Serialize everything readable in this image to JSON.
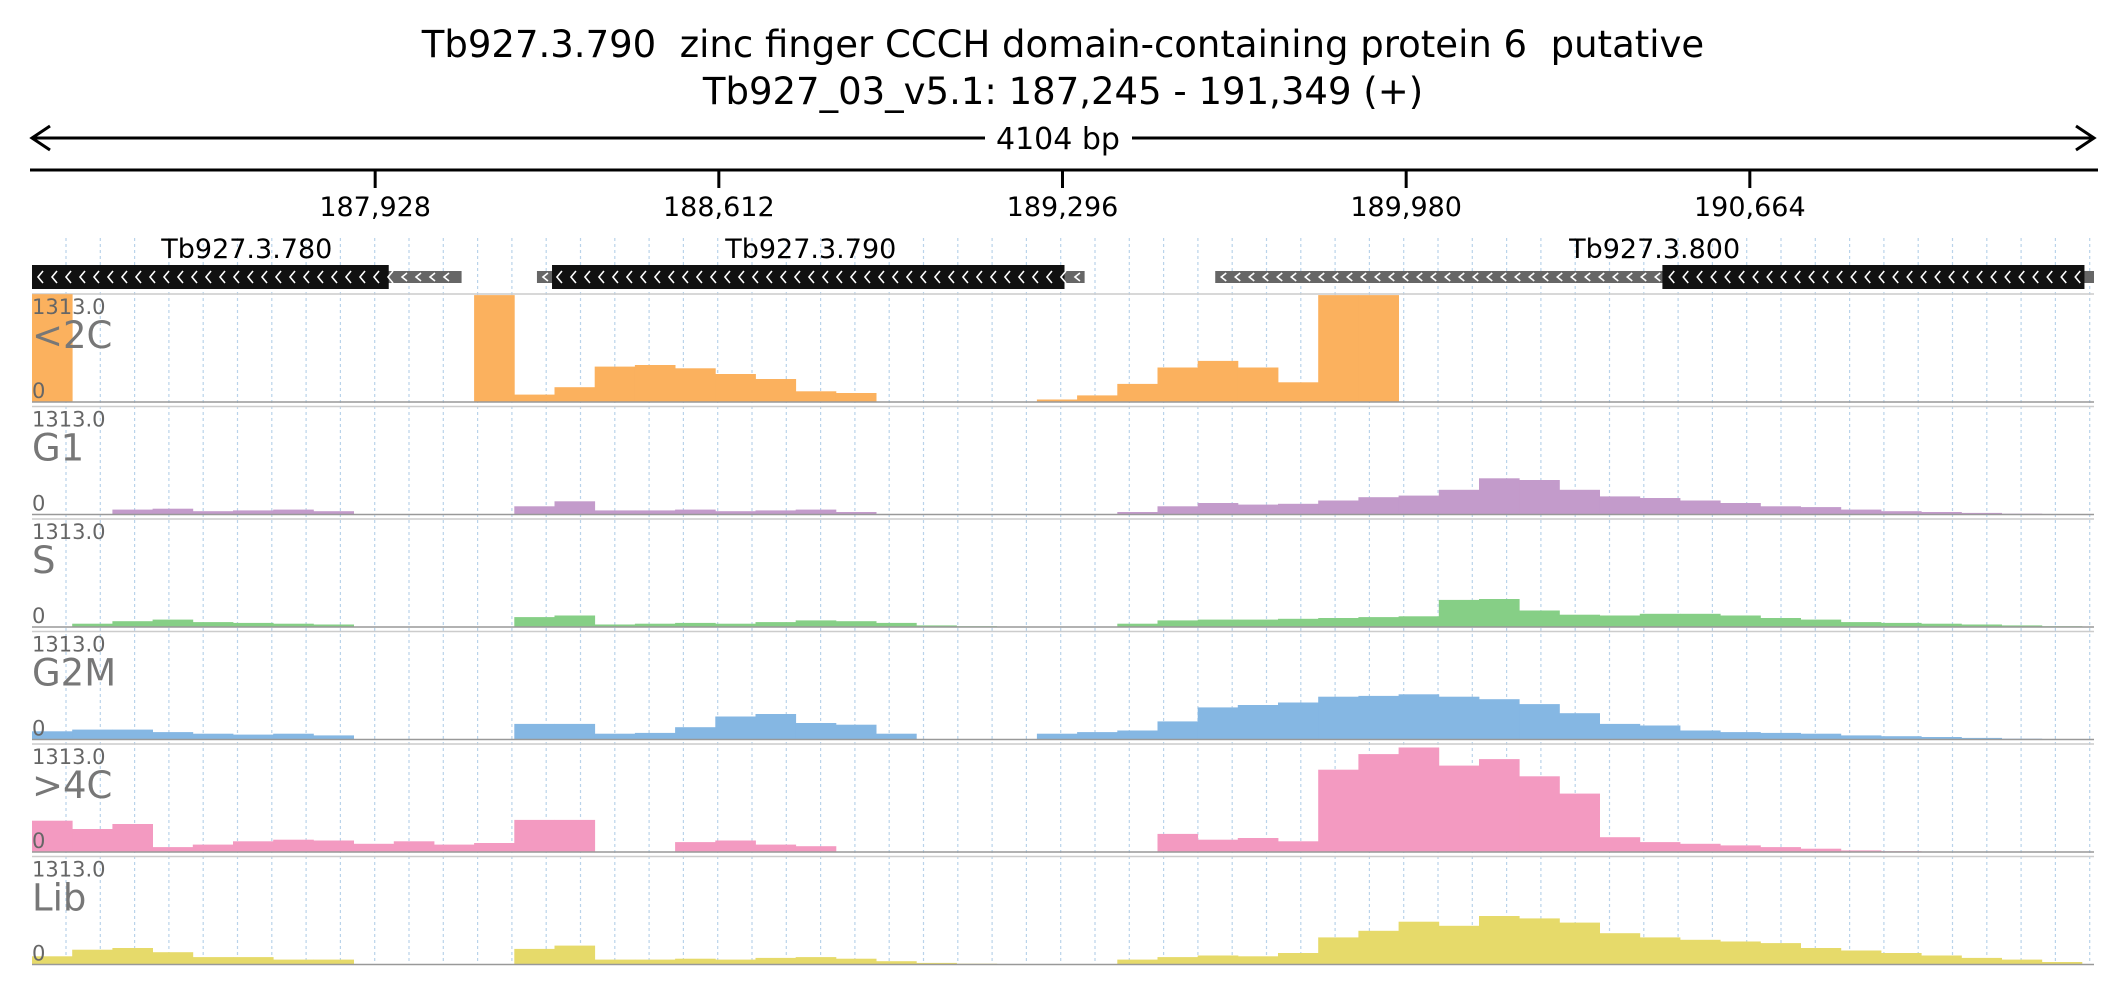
{
  "header": {
    "title": "Tb927.3.790  zinc finger CCCH domain-containing protein 6  putative",
    "location": "Tb927_03_v5.1: 187,245 - 191,349 (+)",
    "span_label": "4104 bp"
  },
  "chart_data": {
    "type": "area",
    "region": {
      "chrom": "Tb927_03_v5.1",
      "start": 187245,
      "end": 191349,
      "strand": "+"
    },
    "ruler_ticks": [
      {
        "pos": 187928,
        "label": "187,928"
      },
      {
        "pos": 188612,
        "label": "188,612"
      },
      {
        "pos": 189296,
        "label": "189,296"
      },
      {
        "pos": 189980,
        "label": "189,980"
      },
      {
        "pos": 190664,
        "label": "190,664"
      }
    ],
    "genes": [
      {
        "name": "Tb927.3.780",
        "strand": "-",
        "transcript": [
          187245,
          188100
        ],
        "cds": [
          187245,
          187955
        ]
      },
      {
        "name": "Tb927.3.790",
        "strand": "-",
        "transcript": [
          188250,
          189340
        ],
        "cds": [
          188280,
          189300
        ]
      },
      {
        "name": "Tb927.3.800",
        "strand": "-",
        "transcript": [
          189600,
          191349
        ],
        "cds": [
          190490,
          191330
        ]
      }
    ],
    "track_max_label": "1313.0",
    "track_min_label": "0",
    "ylim": [
      0,
      1313
    ],
    "bin_starts": [
      187245,
      187325,
      187405,
      187485,
      187565,
      187645,
      187725,
      187805,
      187885,
      187965,
      188045,
      188125,
      188205,
      188285,
      188365,
      188445,
      188525,
      188605,
      188685,
      188765,
      188845,
      188925,
      189005,
      189085,
      189165,
      189245,
      189325,
      189405,
      189485,
      189565,
      189645,
      189725,
      189805,
      189885,
      189965,
      190045,
      190125,
      190205,
      190285,
      190365,
      190445,
      190525,
      190605,
      190685,
      190765,
      190845,
      190925,
      191005,
      191085,
      191165,
      191245
    ],
    "bin_size": 80,
    "series": [
      {
        "name": "<2C",
        "color": "#fbb15e",
        "values": [
          1310,
          0,
          0,
          0,
          0,
          0,
          0,
          0,
          0,
          0,
          0,
          1300,
          90,
          180,
          430,
          450,
          410,
          340,
          280,
          130,
          110,
          0,
          0,
          0,
          0,
          30,
          80,
          220,
          420,
          500,
          420,
          240,
          1300,
          1300,
          0,
          0,
          0,
          0,
          0,
          0,
          0,
          0,
          0,
          0,
          0,
          0,
          0,
          0,
          0,
          0,
          0
        ]
      },
      {
        "name": "G1",
        "color": "#c39bcb",
        "values": [
          0,
          0,
          60,
          70,
          40,
          50,
          60,
          40,
          0,
          0,
          0,
          0,
          100,
          160,
          50,
          50,
          60,
          40,
          50,
          60,
          30,
          0,
          0,
          0,
          0,
          0,
          0,
          30,
          100,
          140,
          120,
          130,
          170,
          210,
          230,
          300,
          440,
          420,
          300,
          220,
          200,
          170,
          140,
          100,
          90,
          60,
          40,
          30,
          20,
          10,
          0
        ]
      },
      {
        "name": "S",
        "color": "#86cf86",
        "values": [
          0,
          40,
          70,
          90,
          60,
          50,
          40,
          30,
          0,
          0,
          0,
          0,
          120,
          140,
          30,
          40,
          50,
          40,
          60,
          80,
          70,
          50,
          20,
          10,
          0,
          0,
          0,
          40,
          80,
          90,
          90,
          100,
          110,
          120,
          130,
          330,
          340,
          200,
          150,
          140,
          160,
          160,
          140,
          110,
          90,
          60,
          50,
          40,
          30,
          20,
          10
        ]
      },
      {
        "name": "G2M",
        "color": "#85b7e3",
        "values": [
          100,
          120,
          120,
          90,
          70,
          60,
          70,
          50,
          0,
          0,
          0,
          0,
          190,
          190,
          70,
          80,
          150,
          280,
          310,
          200,
          180,
          70,
          0,
          0,
          0,
          70,
          90,
          110,
          220,
          390,
          420,
          450,
          520,
          530,
          550,
          520,
          490,
          430,
          320,
          190,
          170,
          110,
          90,
          80,
          70,
          50,
          40,
          30,
          20,
          10,
          0
        ]
      },
      {
        "name": ">4C",
        "color": "#f39ac1",
        "values": [
          380,
          280,
          340,
          60,
          90,
          130,
          150,
          140,
          100,
          130,
          90,
          110,
          390,
          390,
          0,
          0,
          120,
          140,
          90,
          70,
          0,
          0,
          0,
          0,
          0,
          0,
          0,
          0,
          220,
          150,
          170,
          130,
          1000,
          1190,
          1270,
          1050,
          1130,
          920,
          710,
          180,
          120,
          100,
          80,
          60,
          40,
          20,
          10,
          0,
          0,
          0,
          0
        ]
      },
      {
        "name": "Lib",
        "color": "#e6da6a",
        "values": [
          100,
          180,
          200,
          150,
          90,
          90,
          60,
          60,
          0,
          0,
          0,
          0,
          190,
          230,
          60,
          60,
          70,
          60,
          80,
          90,
          70,
          40,
          20,
          10,
          0,
          0,
          0,
          60,
          90,
          110,
          100,
          140,
          330,
          410,
          520,
          470,
          590,
          560,
          510,
          380,
          330,
          300,
          280,
          260,
          200,
          170,
          140,
          110,
          80,
          60,
          30
        ]
      }
    ]
  }
}
